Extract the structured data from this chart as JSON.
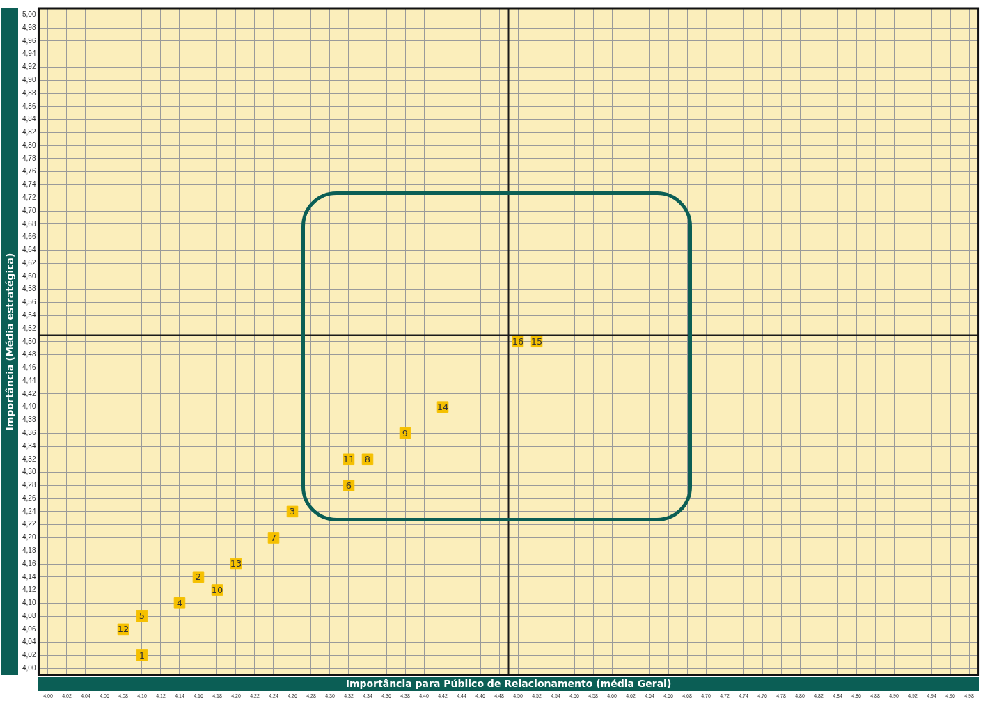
{
  "chart_data": {
    "type": "scatter",
    "xlabel": "Importância para Público de Relacionamento (média Geral)",
    "ylabel": "Importância (Média estratégica)",
    "x": [
      4.1,
      4.16,
      4.26,
      4.14,
      4.1,
      4.32,
      4.24,
      4.34,
      4.38,
      4.18,
      4.32,
      4.08,
      4.2,
      4.42,
      4.52,
      4.5
    ],
    "values": [
      4.02,
      4.14,
      4.24,
      4.1,
      4.08,
      4.28,
      4.2,
      4.32,
      4.36,
      4.12,
      4.32,
      4.06,
      4.16,
      4.4,
      4.5,
      4.5
    ],
    "annotations": [
      {
        "text": "1",
        "x": 4.1,
        "y": 4.02
      },
      {
        "text": "2",
        "x": 4.16,
        "y": 4.14
      },
      {
        "text": "3",
        "x": 4.26,
        "y": 4.24
      },
      {
        "text": "4",
        "x": 4.14,
        "y": 4.1
      },
      {
        "text": "5",
        "x": 4.1,
        "y": 4.08
      },
      {
        "text": "6",
        "x": 4.32,
        "y": 4.28
      },
      {
        "text": "7",
        "x": 4.24,
        "y": 4.2
      },
      {
        "text": "8",
        "x": 4.34,
        "y": 4.32
      },
      {
        "text": "9",
        "x": 4.38,
        "y": 4.36
      },
      {
        "text": "10",
        "x": 4.18,
        "y": 4.12
      },
      {
        "text": "11",
        "x": 4.32,
        "y": 4.32
      },
      {
        "text": "12",
        "x": 4.08,
        "y": 4.06
      },
      {
        "text": "13",
        "x": 4.2,
        "y": 4.16
      },
      {
        "text": "14",
        "x": 4.42,
        "y": 4.4
      },
      {
        "text": "15",
        "x": 4.52,
        "y": 4.5
      },
      {
        "text": "16",
        "x": 4.5,
        "y": 4.5
      }
    ],
    "color": "#f5c000",
    "marker": "square",
    "grid": true,
    "ref_lines": [
      {
        "axis": "x",
        "value": 4.49,
        "color": "#1a1a1a"
      },
      {
        "axis": "y",
        "value": 4.51,
        "color": "#1a1a1a"
      }
    ],
    "xlim": [
      3.99,
      4.99
    ],
    "ylim": [
      3.99,
      5.01
    ],
    "xticks": [
      {
        "value": 4.0,
        "label": "4,00"
      },
      {
        "value": 4.02,
        "label": "4,02"
      },
      {
        "value": 4.04,
        "label": "4,04"
      },
      {
        "value": 4.06,
        "label": "4,06"
      },
      {
        "value": 4.08,
        "label": "4,08"
      },
      {
        "value": 4.1,
        "label": "4,10"
      },
      {
        "value": 4.12,
        "label": "4,12"
      },
      {
        "value": 4.14,
        "label": "4,14"
      },
      {
        "value": 4.16,
        "label": "4,16"
      },
      {
        "value": 4.18,
        "label": "4,18"
      },
      {
        "value": 4.2,
        "label": "4,20"
      },
      {
        "value": 4.22,
        "label": "4,22"
      },
      {
        "value": 4.24,
        "label": "4,24"
      },
      {
        "value": 4.26,
        "label": "4,26"
      },
      {
        "value": 4.28,
        "label": "4,28"
      },
      {
        "value": 4.3,
        "label": "4,30"
      },
      {
        "value": 4.32,
        "label": "4,32"
      },
      {
        "value": 4.34,
        "label": "4,34"
      },
      {
        "value": 4.36,
        "label": "4,36"
      },
      {
        "value": 4.38,
        "label": "4,38"
      },
      {
        "value": 4.4,
        "label": "4,40"
      },
      {
        "value": 4.42,
        "label": "4,42"
      },
      {
        "value": 4.44,
        "label": "4,44"
      },
      {
        "value": 4.46,
        "label": "4,46"
      },
      {
        "value": 4.48,
        "label": "4,48"
      },
      {
        "value": 4.5,
        "label": "4,50"
      },
      {
        "value": 4.52,
        "label": "4,52"
      },
      {
        "value": 4.54,
        "label": "4,54"
      },
      {
        "value": 4.56,
        "label": "4,56"
      },
      {
        "value": 4.58,
        "label": "4,58"
      },
      {
        "value": 4.6,
        "label": "4,60"
      },
      {
        "value": 4.62,
        "label": "4,62"
      },
      {
        "value": 4.64,
        "label": "4,64"
      },
      {
        "value": 4.66,
        "label": "4,66"
      },
      {
        "value": 4.68,
        "label": "4,68"
      },
      {
        "value": 4.7,
        "label": "4,70"
      },
      {
        "value": 4.72,
        "label": "4,72"
      },
      {
        "value": 4.74,
        "label": "4,74"
      },
      {
        "value": 4.76,
        "label": "4,76"
      },
      {
        "value": 4.78,
        "label": "4,78"
      },
      {
        "value": 4.8,
        "label": "4,80"
      },
      {
        "value": 4.82,
        "label": "4,82"
      },
      {
        "value": 4.84,
        "label": "4,84"
      },
      {
        "value": 4.86,
        "label": "4,86"
      },
      {
        "value": 4.88,
        "label": "4,88"
      },
      {
        "value": 4.9,
        "label": "4,90"
      },
      {
        "value": 4.92,
        "label": "4,92"
      },
      {
        "value": 4.94,
        "label": "4,94"
      },
      {
        "value": 4.96,
        "label": "4,96"
      },
      {
        "value": 4.98,
        "label": "4,98"
      }
    ],
    "yticks": [
      {
        "value": 4.0,
        "label": "4,00"
      },
      {
        "value": 4.02,
        "label": "4,02"
      },
      {
        "value": 4.04,
        "label": "4,04"
      },
      {
        "value": 4.06,
        "label": "4,06"
      },
      {
        "value": 4.08,
        "label": "4,08"
      },
      {
        "value": 4.1,
        "label": "4,10"
      },
      {
        "value": 4.12,
        "label": "4,12"
      },
      {
        "value": 4.14,
        "label": "4,14"
      },
      {
        "value": 4.16,
        "label": "4,16"
      },
      {
        "value": 4.18,
        "label": "4,18"
      },
      {
        "value": 4.2,
        "label": "4,20"
      },
      {
        "value": 4.22,
        "label": "4,22"
      },
      {
        "value": 4.24,
        "label": "4,24"
      },
      {
        "value": 4.26,
        "label": "4,26"
      },
      {
        "value": 4.28,
        "label": "4,28"
      },
      {
        "value": 4.3,
        "label": "4,30"
      },
      {
        "value": 4.32,
        "label": "4,32"
      },
      {
        "value": 4.34,
        "label": "4,34"
      },
      {
        "value": 4.36,
        "label": "4,36"
      },
      {
        "value": 4.38,
        "label": "4,38"
      },
      {
        "value": 4.4,
        "label": "4,40"
      },
      {
        "value": 4.42,
        "label": "4,42"
      },
      {
        "value": 4.44,
        "label": "4,44"
      },
      {
        "value": 4.46,
        "label": "4,46"
      },
      {
        "value": 4.48,
        "label": "4,48"
      },
      {
        "value": 4.5,
        "label": "4,50"
      },
      {
        "value": 4.52,
        "label": "4,52"
      },
      {
        "value": 4.54,
        "label": "4,54"
      },
      {
        "value": 4.56,
        "label": "4,56"
      },
      {
        "value": 4.58,
        "label": "4,58"
      },
      {
        "value": 4.6,
        "label": "4,60"
      },
      {
        "value": 4.62,
        "label": "4,62"
      },
      {
        "value": 4.64,
        "label": "4,64"
      },
      {
        "value": 4.66,
        "label": "4,66"
      },
      {
        "value": 4.68,
        "label": "4,68"
      },
      {
        "value": 4.7,
        "label": "4,70"
      },
      {
        "value": 4.72,
        "label": "4,72"
      },
      {
        "value": 4.74,
        "label": "4,74"
      },
      {
        "value": 4.76,
        "label": "4,76"
      },
      {
        "value": 4.78,
        "label": "4,78"
      },
      {
        "value": 4.8,
        "label": "4,80"
      },
      {
        "value": 4.82,
        "label": "4,82"
      },
      {
        "value": 4.84,
        "label": "4,84"
      },
      {
        "value": 4.86,
        "label": "4,86"
      },
      {
        "value": 4.88,
        "label": "4,88"
      },
      {
        "value": 4.9,
        "label": "4,90"
      },
      {
        "value": 4.92,
        "label": "4,92"
      },
      {
        "value": 4.94,
        "label": "4,94"
      },
      {
        "value": 4.96,
        "label": "4,96"
      },
      {
        "value": 4.98,
        "label": "4,98"
      },
      {
        "value": 5.0,
        "label": "5,00"
      }
    ]
  }
}
